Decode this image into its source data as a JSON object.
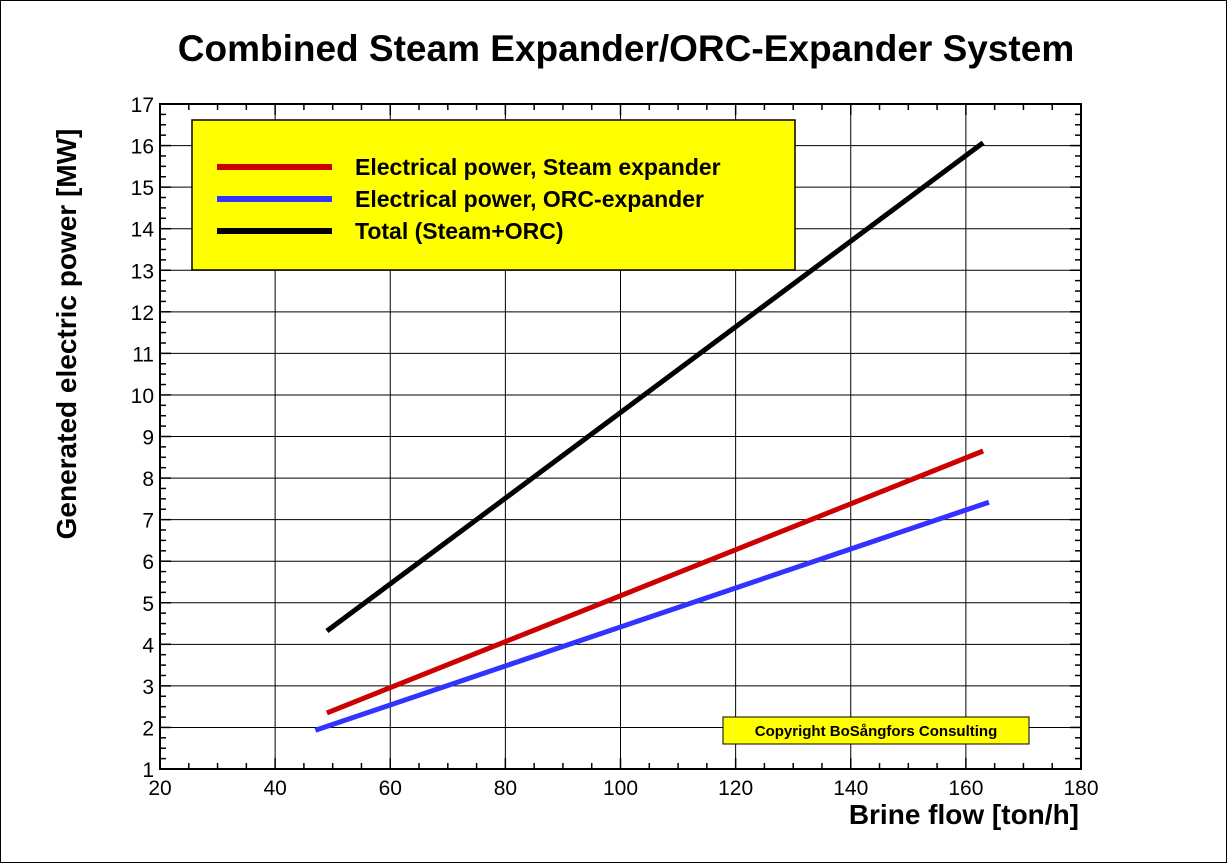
{
  "chart_data": {
    "type": "line",
    "title": "Combined Steam Expander/ORC-Expander System",
    "xlabel": "Brine flow [ton/h]",
    "ylabel": "Generated electric power [MW]",
    "xlim": [
      20,
      180
    ],
    "ylim": [
      1,
      17
    ],
    "x_major_ticks": [
      20,
      40,
      60,
      80,
      100,
      120,
      140,
      160,
      180
    ],
    "y_major_ticks": [
      1,
      2,
      3,
      4,
      5,
      6,
      7,
      8,
      9,
      10,
      11,
      12,
      13,
      14,
      15,
      16,
      17
    ],
    "grid": true,
    "legend_position": "top-left",
    "series": [
      {
        "name": "Electrical power, Steam expander",
        "color": "#cc0000",
        "x": [
          49,
          163
        ],
        "y": [
          2.35,
          8.65
        ]
      },
      {
        "name": "Electrical power, ORC-expander",
        "color": "#3333ff",
        "x": [
          47,
          164
        ],
        "y": [
          1.93,
          7.42
        ]
      },
      {
        "name": "Total (Steam+ORC)",
        "color": "#000000",
        "x": [
          49,
          163
        ],
        "y": [
          4.32,
          16.07
        ]
      }
    ],
    "annotation": "Copyright BoSångfors Consulting",
    "legend_bg": "#ffff00",
    "annotation_bg": "#ffff00"
  }
}
